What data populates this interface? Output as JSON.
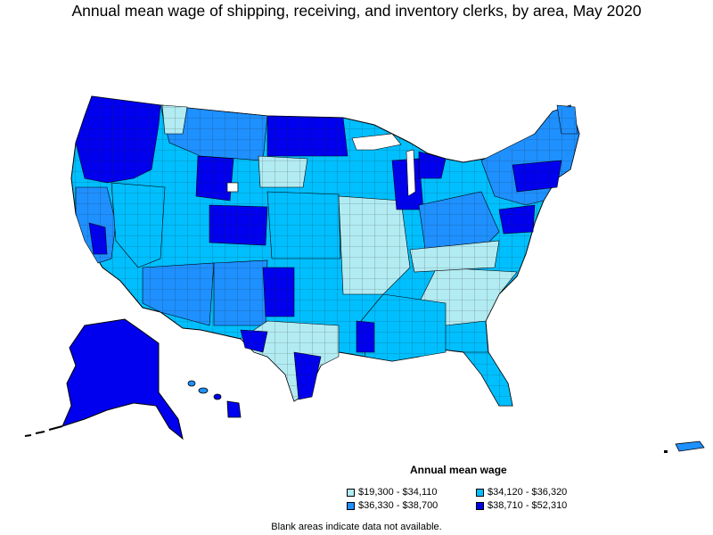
{
  "title": "Annual mean wage of shipping, receiving, and inventory clerks, by area, May 2020",
  "legend": {
    "title": "Annual mean wage",
    "items": [
      {
        "label": "$19,300 - $34,110",
        "color": "#b2ebf2"
      },
      {
        "label": "$34,120 - $36,320",
        "color": "#00bfff"
      },
      {
        "label": "$36,330 - $38,700",
        "color": "#1e90ff"
      },
      {
        "label": "$38,710 - $52,310",
        "color": "#0000ee"
      }
    ]
  },
  "footnote": "Blank areas indicate data not available."
}
